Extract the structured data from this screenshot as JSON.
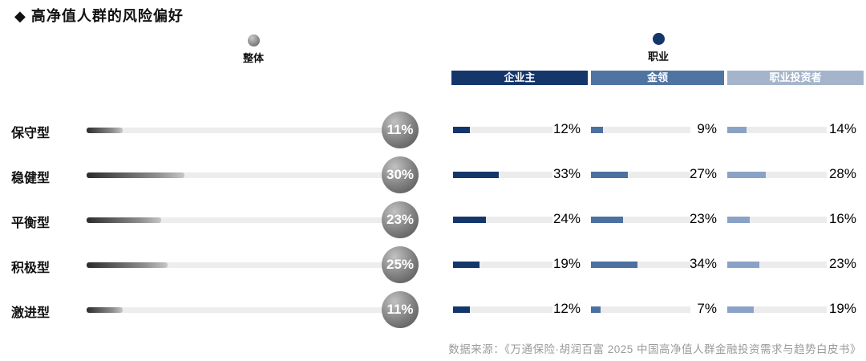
{
  "title": "◆ 高净值人群的风险偏好",
  "legends": {
    "overall": {
      "label": "整体"
    },
    "occupation": {
      "label": "职业"
    }
  },
  "columns": [
    "企业主",
    "金领",
    "职业投资者"
  ],
  "rows": [
    {
      "label": "保守型",
      "overall": 11,
      "jobs": [
        12,
        9,
        14
      ]
    },
    {
      "label": "稳健型",
      "overall": 30,
      "jobs": [
        33,
        27,
        28
      ]
    },
    {
      "label": "平衡型",
      "overall": 23,
      "jobs": [
        24,
        23,
        16
      ]
    },
    {
      "label": "积极型",
      "overall": 25,
      "jobs": [
        19,
        34,
        23
      ]
    },
    {
      "label": "激进型",
      "overall": 11,
      "jobs": [
        12,
        7,
        19
      ]
    }
  ],
  "footer": "数据来源：《万通保险·胡润百富 2025 中国高净值人群金融投资需求与趋势白皮书》",
  "colors": {
    "navy": "#14366b",
    "slate_blue": "#5074a1",
    "light_blue": "#a4b4ca",
    "bar_fill_light_blue": "#8aa2c6",
    "gray_track": "#ececec",
    "gray_badge_dark": "#4e4e4e",
    "footer_text": "#9b9b9b"
  },
  "chart_data": {
    "type": "bar",
    "orientation": "horizontal",
    "title": "高净值人群的风险偏好",
    "categories": [
      "保守型",
      "稳健型",
      "平衡型",
      "积极型",
      "激进型"
    ],
    "series": [
      {
        "name": "整体",
        "values": [
          11,
          30,
          23,
          25,
          11
        ]
      },
      {
        "name": "企业主",
        "values": [
          12,
          33,
          24,
          19,
          12
        ]
      },
      {
        "name": "金领",
        "values": [
          9,
          27,
          23,
          34,
          7
        ]
      },
      {
        "name": "职业投资者",
        "values": [
          14,
          28,
          16,
          23,
          19
        ]
      }
    ],
    "unit": "%",
    "xlim": [
      0,
      40
    ],
    "grid": false,
    "legend_position": "top",
    "source": "数据来源：《万通保险·胡润百富 2025 中国高净值人群金融投资需求与趋势白皮书》"
  }
}
